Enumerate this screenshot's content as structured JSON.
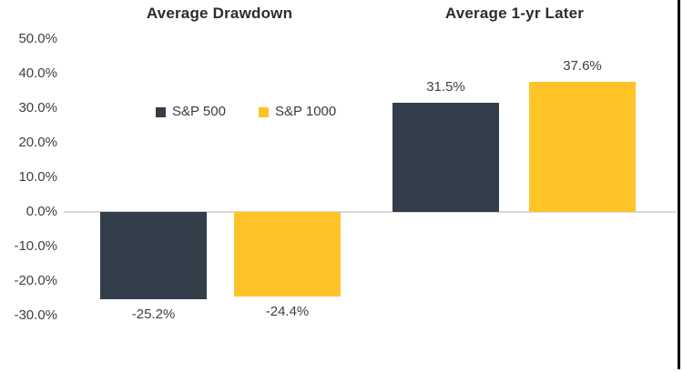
{
  "page": {
    "background": "#FFFFFF"
  },
  "chart_data": {
    "type": "bar",
    "series": [
      {
        "name": "S&P 500",
        "color": "#343E4A"
      },
      {
        "name": "S&P 1000",
        "color": "#FEC327"
      }
    ],
    "groups": [
      {
        "title": "Average Drawdown",
        "values": [
          -25.2,
          -24.4
        ],
        "value_labels": [
          "-25.2%",
          "-24.4%"
        ]
      },
      {
        "title": "Average 1-yr Later",
        "values": [
          31.5,
          37.6
        ],
        "value_labels": [
          "31.5%",
          "37.6%"
        ]
      }
    ],
    "y_axis": {
      "min": -30,
      "max": 50,
      "step": 10,
      "tick_labels": [
        "50.0%",
        "40.0%",
        "30.0%",
        "20.0%",
        "10.0%",
        "0.0%",
        "-10.0%",
        "-20.0%",
        "-30.0%"
      ],
      "grid": false,
      "zero_line": true
    },
    "legend": {
      "items": [
        "S&P 500",
        "S&P 1000"
      ],
      "position": "left-upper-plot-area"
    },
    "colors": {
      "axis_line": "#D9D9D9",
      "tick_text": "#3F3F3F",
      "title_text": "#2D2D2D",
      "right_edge_line": "#000000"
    }
  }
}
